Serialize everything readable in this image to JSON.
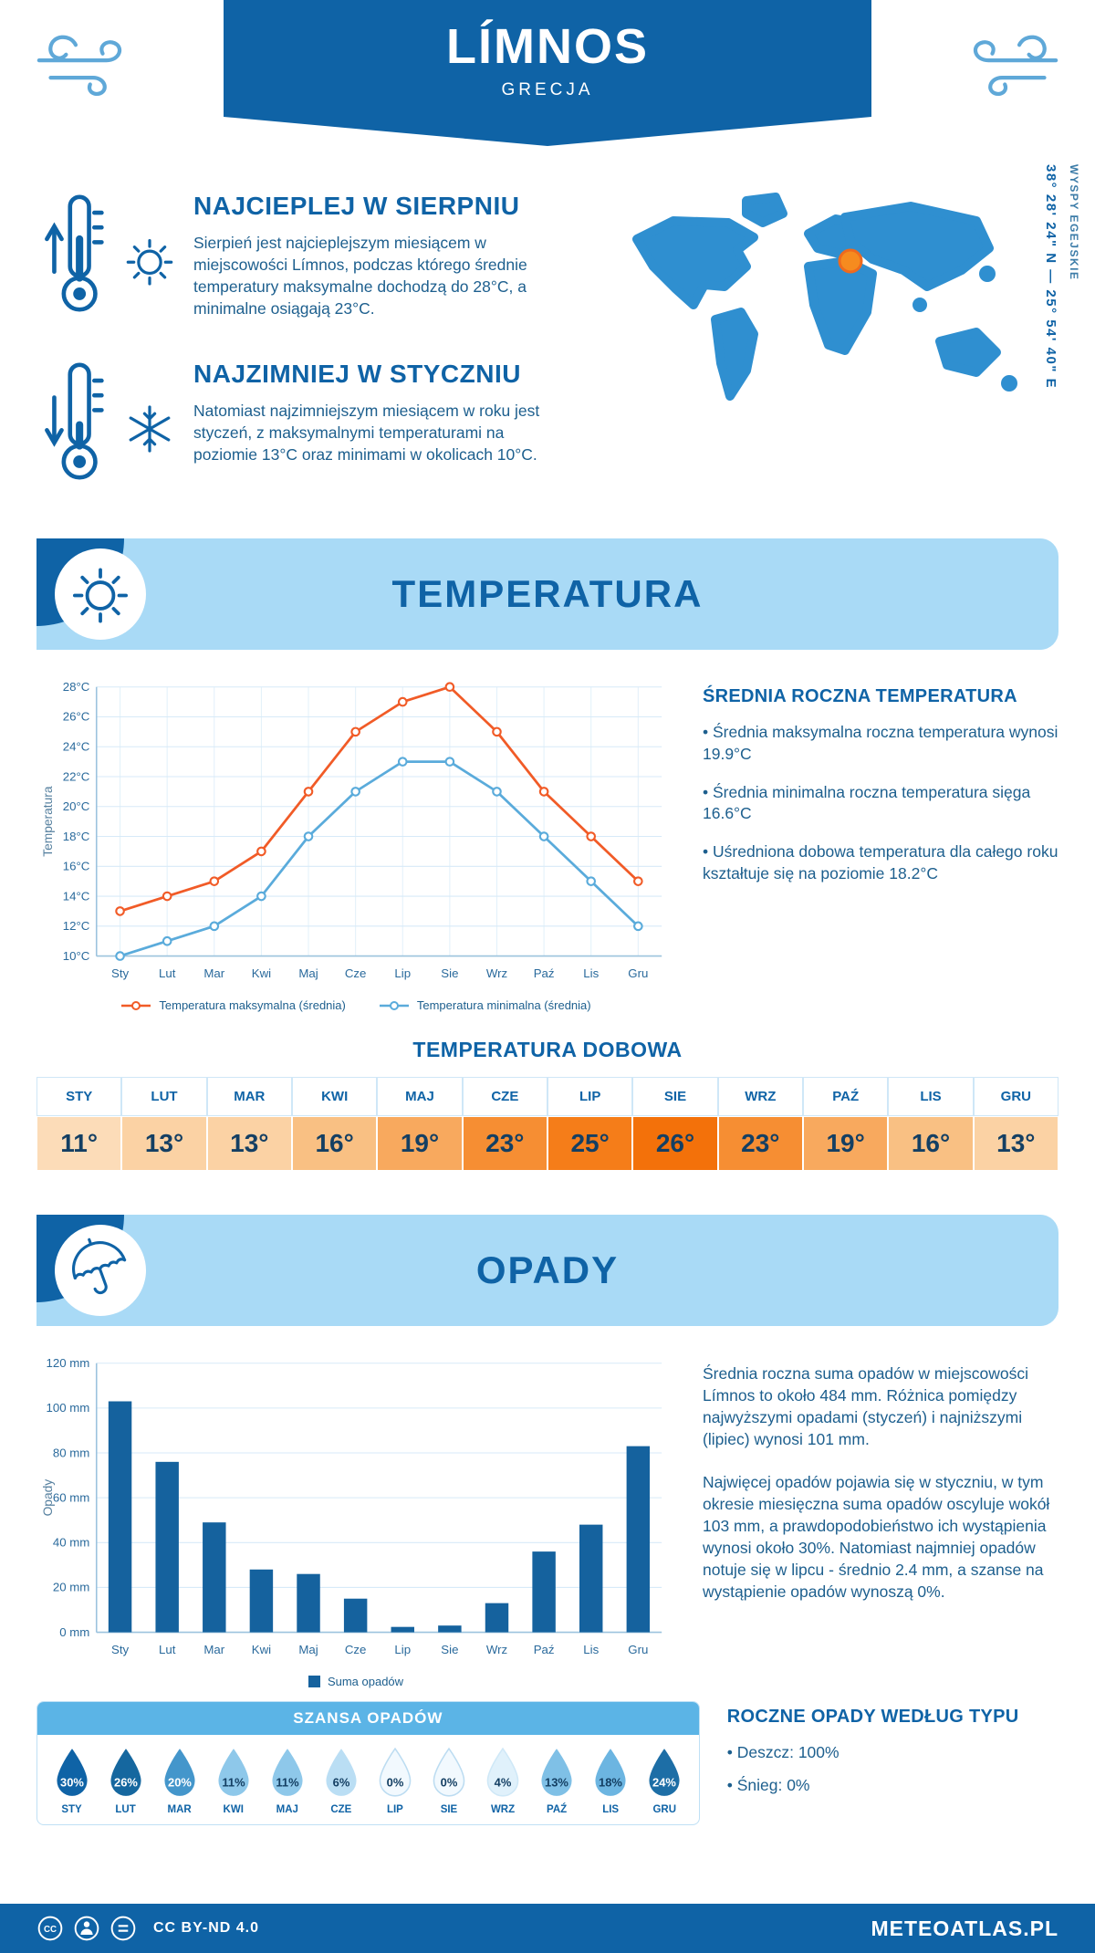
{
  "colors": {
    "primary": "#0f63a6",
    "band": "#a9daf6",
    "accent_orange": "#f15b27",
    "accent_light_blue": "#5aabdb"
  },
  "header": {
    "title": "LÍMNOS",
    "subtitle": "GRECJA"
  },
  "intro": {
    "warm": {
      "title": "NAJCIEPLEJ W SIERPNIU",
      "text": "Sierpień jest najcieplejszym miesiącem w miejscowości Límnos, podczas którego średnie temperatury maksymalne dochodzą do 28°C, a minimalne osiągają 23°C."
    },
    "cold": {
      "title": "NAJZIMNIEJ W STYCZNIU",
      "text": "Natomiast najzimniejszym miesiącem w roku jest styczeń, z maksymalnymi temperaturami na poziomie 13°C oraz minimami w okolicach 10°C."
    },
    "coordinates": "38° 28' 24\" N — 25° 54' 40\" E",
    "region": "WYSPY EGEJSKIE"
  },
  "temperature_section": {
    "title": "TEMPERATURA",
    "annual": {
      "title": "ŚREDNIA ROCZNA TEMPERATURA",
      "bullets": [
        "Średnia maksymalna roczna temperatura wynosi 19.9°C",
        "Średnia minimalna roczna temperatura sięga 16.6°C",
        "Uśredniona dobowa temperatura dla całego roku kształtuje się na poziomie 18.2°C"
      ]
    },
    "daily": {
      "title": "TEMPERATURA DOBOWA",
      "months": [
        "STY",
        "LUT",
        "MAR",
        "KWI",
        "MAJ",
        "CZE",
        "LIP",
        "SIE",
        "WRZ",
        "PAŹ",
        "LIS",
        "GRU"
      ],
      "values": [
        "11°",
        "13°",
        "13°",
        "16°",
        "19°",
        "23°",
        "25°",
        "26°",
        "23°",
        "19°",
        "16°",
        "13°"
      ],
      "cell_colors": [
        "#fcdcb8",
        "#fbd2a4",
        "#fbd2a4",
        "#f9c083",
        "#f8a95e",
        "#f68e33",
        "#f57d19",
        "#f3710a",
        "#f68e33",
        "#f8a95e",
        "#f9c083",
        "#fbd2a4"
      ]
    }
  },
  "precipitation_section": {
    "title": "OPADY",
    "paragraphs": [
      "Średnia roczna suma opadów w miejscowości Límnos to około 484 mm. Różnica pomiędzy najwyższymi opadami (styczeń) i najniższymi (lipiec) wynosi 101 mm.",
      "Najwięcej opadów pojawia się w styczniu, w tym okresie miesięczna suma opadów oscyluje wokół 103 mm, a prawdopodobieństwo ich wystąpienia wynosi około 30%. Natomiast najmniej opadów notuje się w lipcu - średnio 2.4 mm, a szanse na wystąpienie opadów wynoszą 0%."
    ],
    "chance": {
      "title": "SZANSA OPADÓW",
      "months": [
        "STY",
        "LUT",
        "MAR",
        "KWI",
        "MAJ",
        "CZE",
        "LIP",
        "SIE",
        "WRZ",
        "PAŹ",
        "LIS",
        "GRU"
      ],
      "values": [
        "30%",
        "26%",
        "20%",
        "11%",
        "11%",
        "6%",
        "0%",
        "0%",
        "4%",
        "13%",
        "18%",
        "24%"
      ],
      "drop_fills": [
        "#0f63a6",
        "#15679f",
        "#4496cb",
        "#8ec8ea",
        "#8ec8ea",
        "#badef4",
        "#f2f9fe",
        "#f2f9fe",
        "#e0f1fb",
        "#7fc0e6",
        "#6cb5e1",
        "#1d6ea6"
      ],
      "drop_strokes": [
        "none",
        "none",
        "none",
        "none",
        "none",
        "none",
        "#bcdcf1",
        "#bcdcf1",
        "#cfe8f7",
        "none",
        "none",
        "none"
      ],
      "text_colors": [
        "#ffffff",
        "#ffffff",
        "#ffffff",
        "#143f63",
        "#143f63",
        "#143f63",
        "#143f63",
        "#143f63",
        "#143f63",
        "#143f63",
        "#143f63",
        "#ffffff"
      ]
    },
    "by_type": {
      "title": "ROCZNE OPADY WEDŁUG TYPU",
      "bullets": [
        "Deszcz: 100%",
        "Śnieg: 0%"
      ]
    }
  },
  "footer": {
    "license": "CC BY-ND 4.0",
    "brand": "METEOATLAS.PL"
  },
  "chart_data": [
    {
      "type": "line",
      "title": "TEMPERATURA",
      "x": [
        "Sty",
        "Lut",
        "Mar",
        "Kwi",
        "Maj",
        "Cze",
        "Lip",
        "Sie",
        "Wrz",
        "Paź",
        "Lis",
        "Gru"
      ],
      "series": [
        {
          "name": "Temperatura maksymalna (średnia)",
          "color": "#f15b27",
          "values": [
            13,
            14,
            15,
            17,
            21,
            25,
            27,
            28,
            25,
            21,
            18,
            15
          ]
        },
        {
          "name": "Temperatura minimalna (średnia)",
          "color": "#5aabdb",
          "values": [
            10,
            11,
            12,
            14,
            18,
            21,
            23,
            23,
            21,
            18,
            15,
            12
          ]
        }
      ],
      "xlabel": "",
      "ylabel": "Temperatura",
      "ylim": [
        10,
        28
      ],
      "ytick_step": 2,
      "ytick_suffix": "°C",
      "grid": true,
      "legend_position": "bottom"
    },
    {
      "type": "bar",
      "title": "OPADY",
      "categories": [
        "Sty",
        "Lut",
        "Mar",
        "Kwi",
        "Maj",
        "Cze",
        "Lip",
        "Sie",
        "Wrz",
        "Paź",
        "Lis",
        "Gru"
      ],
      "series": [
        {
          "name": "Suma opadów",
          "color": "#15629e",
          "values": [
            103,
            76,
            49,
            28,
            26,
            15,
            2.4,
            3,
            13,
            36,
            48,
            83
          ]
        }
      ],
      "xlabel": "",
      "ylabel": "Opady",
      "ylim": [
        0,
        120
      ],
      "ytick_step": 20,
      "ytick_suffix": " mm",
      "grid": true,
      "legend_position": "bottom"
    }
  ]
}
